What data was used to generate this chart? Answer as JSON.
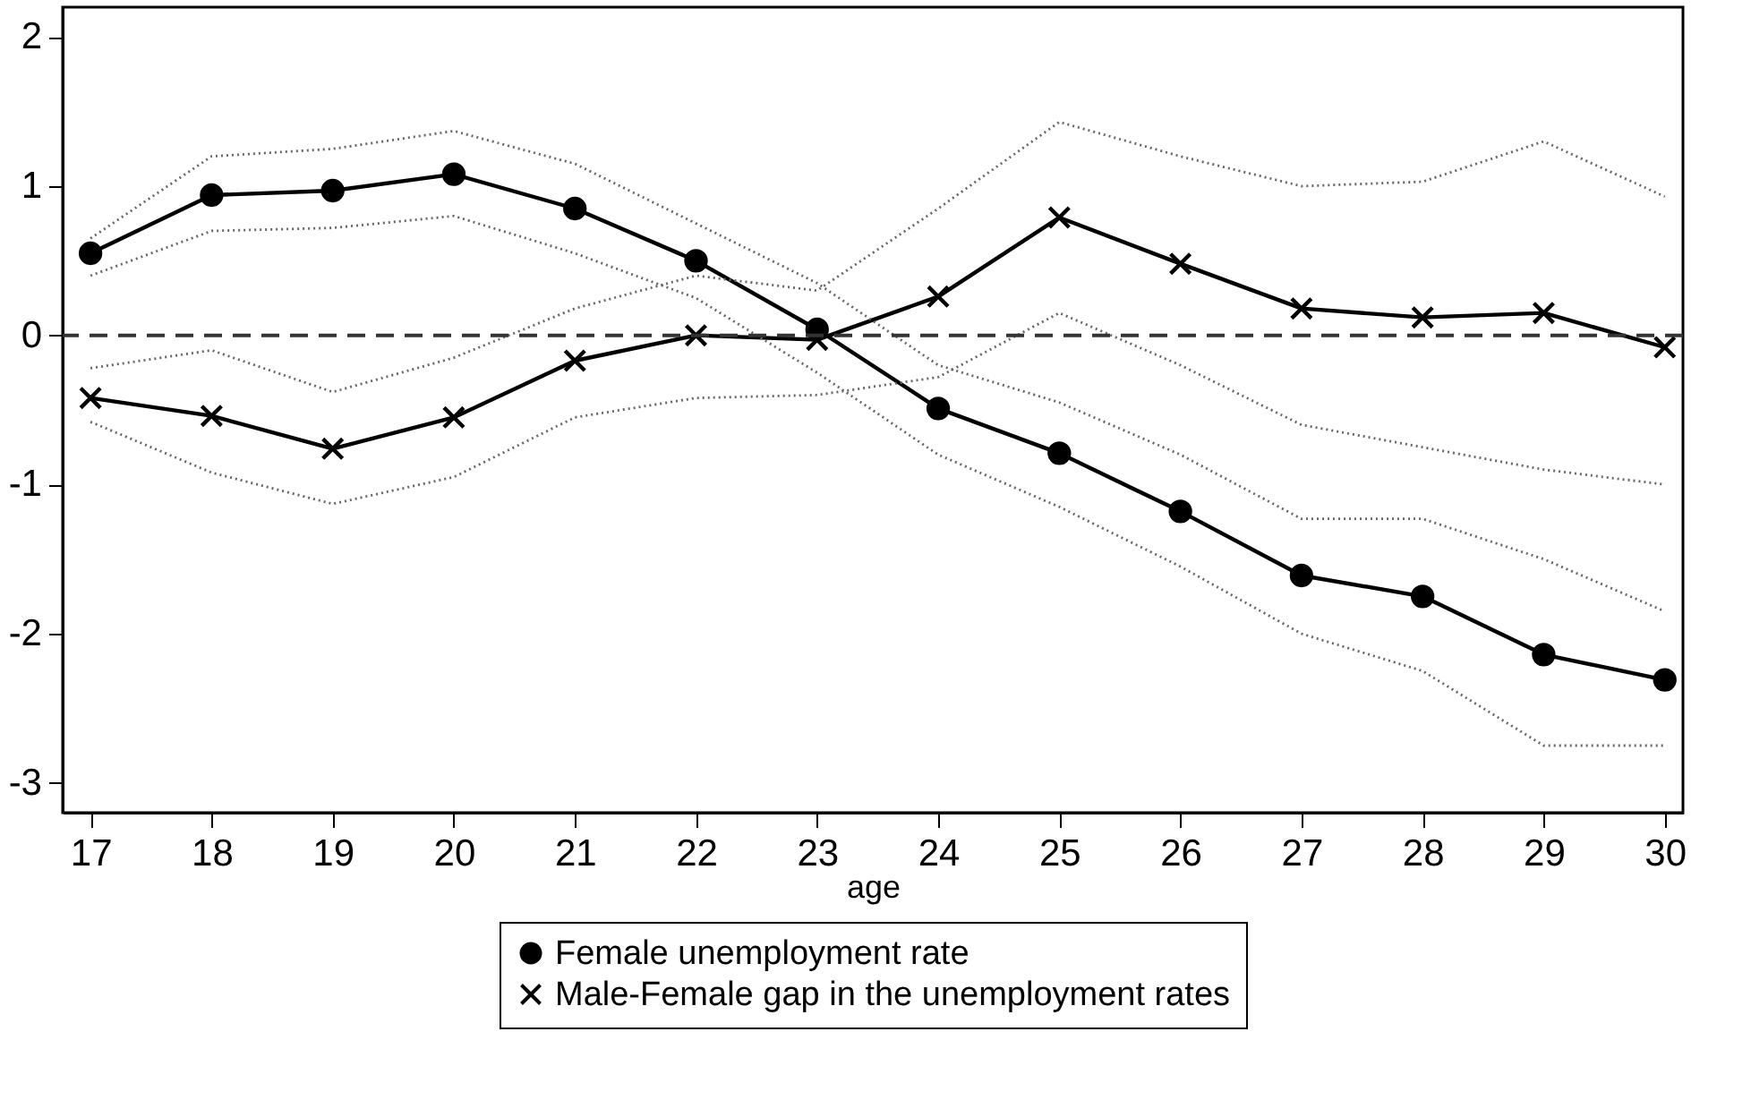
{
  "chart_data": {
    "type": "line",
    "xlabel": "age",
    "x": [
      17,
      18,
      19,
      20,
      21,
      22,
      23,
      24,
      25,
      26,
      27,
      28,
      29,
      30
    ],
    "xlim": [
      16.77,
      30.15
    ],
    "xticks": [
      17,
      18,
      19,
      20,
      21,
      22,
      23,
      24,
      25,
      26,
      27,
      28,
      29,
      30
    ],
    "ylim": [
      -3.2,
      2.2
    ],
    "yticks": [
      -3,
      -2,
      -1,
      0,
      1,
      2
    ],
    "series": [
      {
        "name": "Female unemployment rate",
        "color": "#000000",
        "marker": "circle",
        "values": [
          0.55,
          0.94,
          0.97,
          1.08,
          0.85,
          0.5,
          0.04,
          -0.49,
          -0.79,
          -1.18,
          -1.61,
          -1.75,
          -2.14,
          -2.31
        ]
      },
      {
        "name": "Male-Female gap in the unemployment rates",
        "color": "#000000",
        "marker": "cross",
        "values": [
          -0.42,
          -0.54,
          -0.76,
          -0.55,
          -0.17,
          0.0,
          -0.03,
          0.26,
          0.79,
          0.48,
          0.18,
          0.12,
          0.15,
          -0.08
        ]
      },
      {
        "color": "#666666",
        "marker": "none",
        "line_style": "dotted",
        "values": [
          0.65,
          1.2,
          1.25,
          1.37,
          1.15,
          0.75,
          0.35,
          -0.2,
          -0.45,
          -0.8,
          -1.23,
          -1.23,
          -1.5,
          -1.85
        ]
      },
      {
        "color": "#666666",
        "marker": "none",
        "line_style": "dotted",
        "values": [
          0.4,
          0.7,
          0.72,
          0.8,
          0.55,
          0.25,
          -0.25,
          -0.8,
          -1.15,
          -1.55,
          -2.0,
          -2.25,
          -2.75,
          -2.75
        ]
      },
      {
        "color": "#666666",
        "marker": "none",
        "line_style": "dotted",
        "values": [
          -0.22,
          -0.1,
          -0.38,
          -0.15,
          0.18,
          0.4,
          0.3,
          0.85,
          1.43,
          1.2,
          1.0,
          1.03,
          1.3,
          0.93
        ]
      },
      {
        "color": "#666666",
        "marker": "none",
        "line_style": "dotted",
        "values": [
          -0.58,
          -0.92,
          -1.13,
          -0.95,
          -0.55,
          -0.42,
          -0.4,
          -0.28,
          0.15,
          -0.2,
          -0.6,
          -0.75,
          -0.9,
          -1.0
        ]
      }
    ],
    "ref_lines": [
      {
        "axis": "y",
        "value": 0,
        "line_style": "dashed",
        "color": "#333333"
      }
    ],
    "grid": false,
    "legend": "bottom",
    "line_style": "solid"
  }
}
